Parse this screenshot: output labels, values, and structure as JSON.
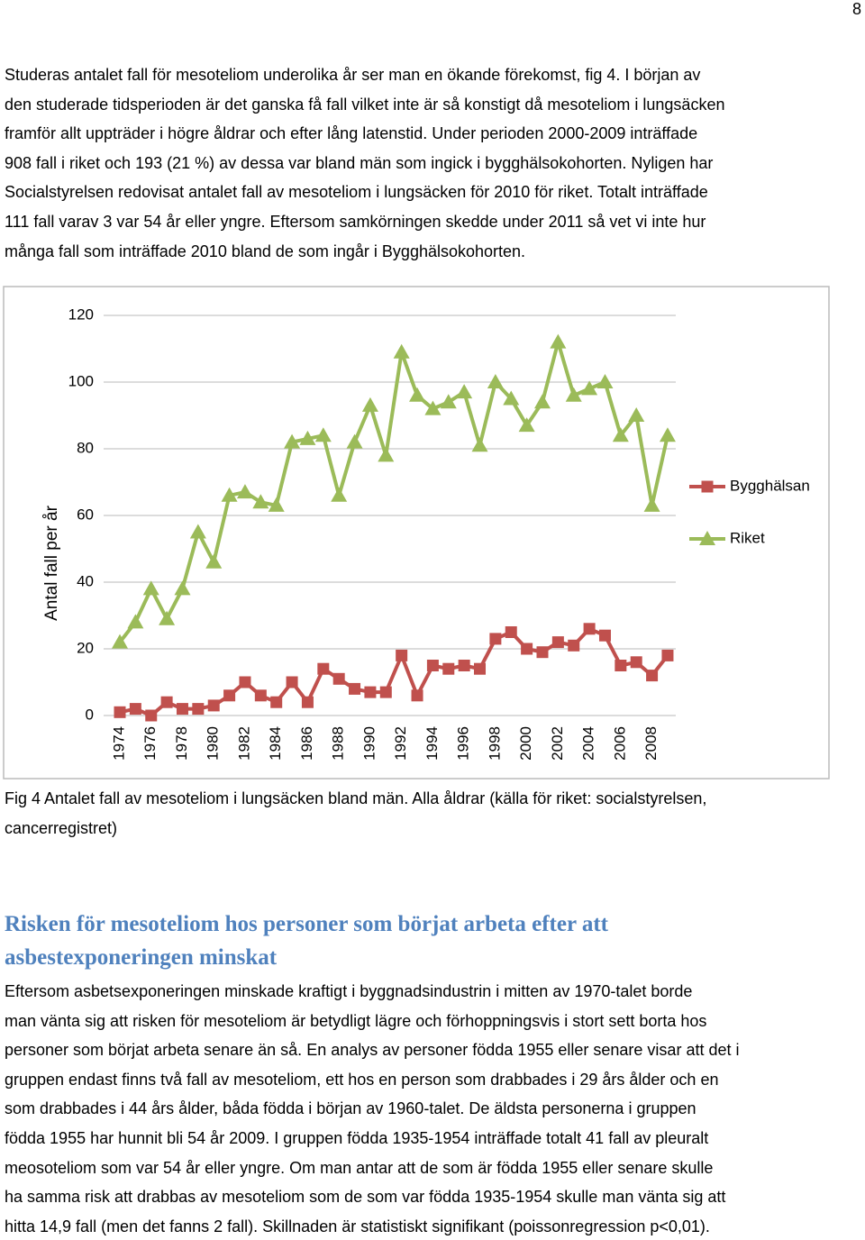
{
  "page_number": "8",
  "intro": [
    "Studeras antalet fall för mesoteliom underolika år ser man en ökande förekomst, fig 4. I början av",
    "den studerade tidsperioden är det ganska få fall vilket inte är så konstigt då mesoteliom i lungsäcken",
    "framför allt uppträder i högre åldrar och efter lång latenstid. Under perioden 2000-2009 inträffade",
    "908 fall i riket och 193 (21 %) av dessa var bland män som ingick i bygghälsokohorten. Nyligen har",
    "Socialstyrelsen redovisat antalet fall av mesoteliom i lungsäcken för 2010 för riket. Totalt inträffade",
    "111 fall varav 3 var 54 år eller yngre. Eftersom samkörningen skedde under 2011 så vet vi inte hur",
    "många fall som inträffade 2010 bland de som ingår i Bygghälsokohorten."
  ],
  "chart_data": {
    "type": "line",
    "y_label": "Antal fall per år",
    "categories": [
      "1974",
      null,
      "1976",
      null,
      "1978",
      null,
      "1980",
      null,
      "1982",
      null,
      "1984",
      null,
      "1986",
      null,
      "1988",
      null,
      "1990",
      null,
      "1992",
      null,
      "1994",
      null,
      "1996",
      null,
      "1998",
      null,
      "2000",
      null,
      "2002",
      null,
      "2004",
      null,
      "2006",
      null,
      "2008",
      null
    ],
    "series": [
      {
        "name": "Bygghälsan",
        "color": "#c0504d",
        "marker": "square",
        "values": [
          1,
          2,
          0,
          4,
          2,
          2,
          3,
          6,
          10,
          6,
          4,
          10,
          4,
          14,
          11,
          8,
          7,
          7,
          18,
          6,
          15,
          14,
          15,
          14,
          23,
          25,
          20,
          19,
          22,
          21,
          26,
          24,
          15,
          16,
          12,
          18
        ]
      },
      {
        "name": "Riket",
        "color": "#9bbb59",
        "marker": "triangle",
        "values": [
          22,
          28,
          38,
          29,
          38,
          55,
          46,
          66,
          67,
          64,
          63,
          82,
          83,
          84,
          66,
          82,
          93,
          78,
          109,
          96,
          92,
          94,
          97,
          81,
          100,
          95,
          87,
          94,
          112,
          96,
          98,
          100,
          84,
          90,
          63,
          84
        ]
      }
    ],
    "ylim": [
      0,
      120
    ],
    "yticks": [
      0,
      20,
      40,
      60,
      80,
      100,
      120
    ],
    "grid": true,
    "legend": "right"
  },
  "caption": [
    "Fig 4 Antalet fall av mesoteliom i lungsäcken bland män. Alla åldrar (källa för riket: socialstyrelsen,",
    "cancerregistret)"
  ],
  "heading": [
    "Risken för mesoteliom hos personer som börjat arbeta efter att",
    "asbestexponeringen minskat"
  ],
  "body": [
    "Eftersom asbetsexponeringen minskade kraftigt i byggnadsindustrin i mitten av 1970-talet borde",
    "man vänta sig att risken för mesoteliom är betydligt lägre och förhoppningsvis i stort sett borta hos",
    "personer som börjat arbeta senare än så. En analys av personer födda 1955 eller senare visar att det i",
    "gruppen endast finns två fall av mesoteliom, ett hos en person som drabbades i 29 års ålder och en",
    "som drabbades i 44 års ålder, båda födda i början av 1960-talet. De äldsta personerna i gruppen",
    "födda 1955 har hunnit bli 54 år 2009. I gruppen födda 1935-1954 inträffade totalt 41 fall av pleuralt",
    "meosoteliom som var 54 år eller yngre. Om man antar att de som är födda 1955 eller senare skulle",
    "ha samma risk att drabbas av mesoteliom som de som var födda 1935-1954 skulle man vänta sig att",
    "hitta 14,9 fall (men det fanns 2 fall). Skillnaden är statistiskt signifikant (poissonregression p<0,01)."
  ]
}
